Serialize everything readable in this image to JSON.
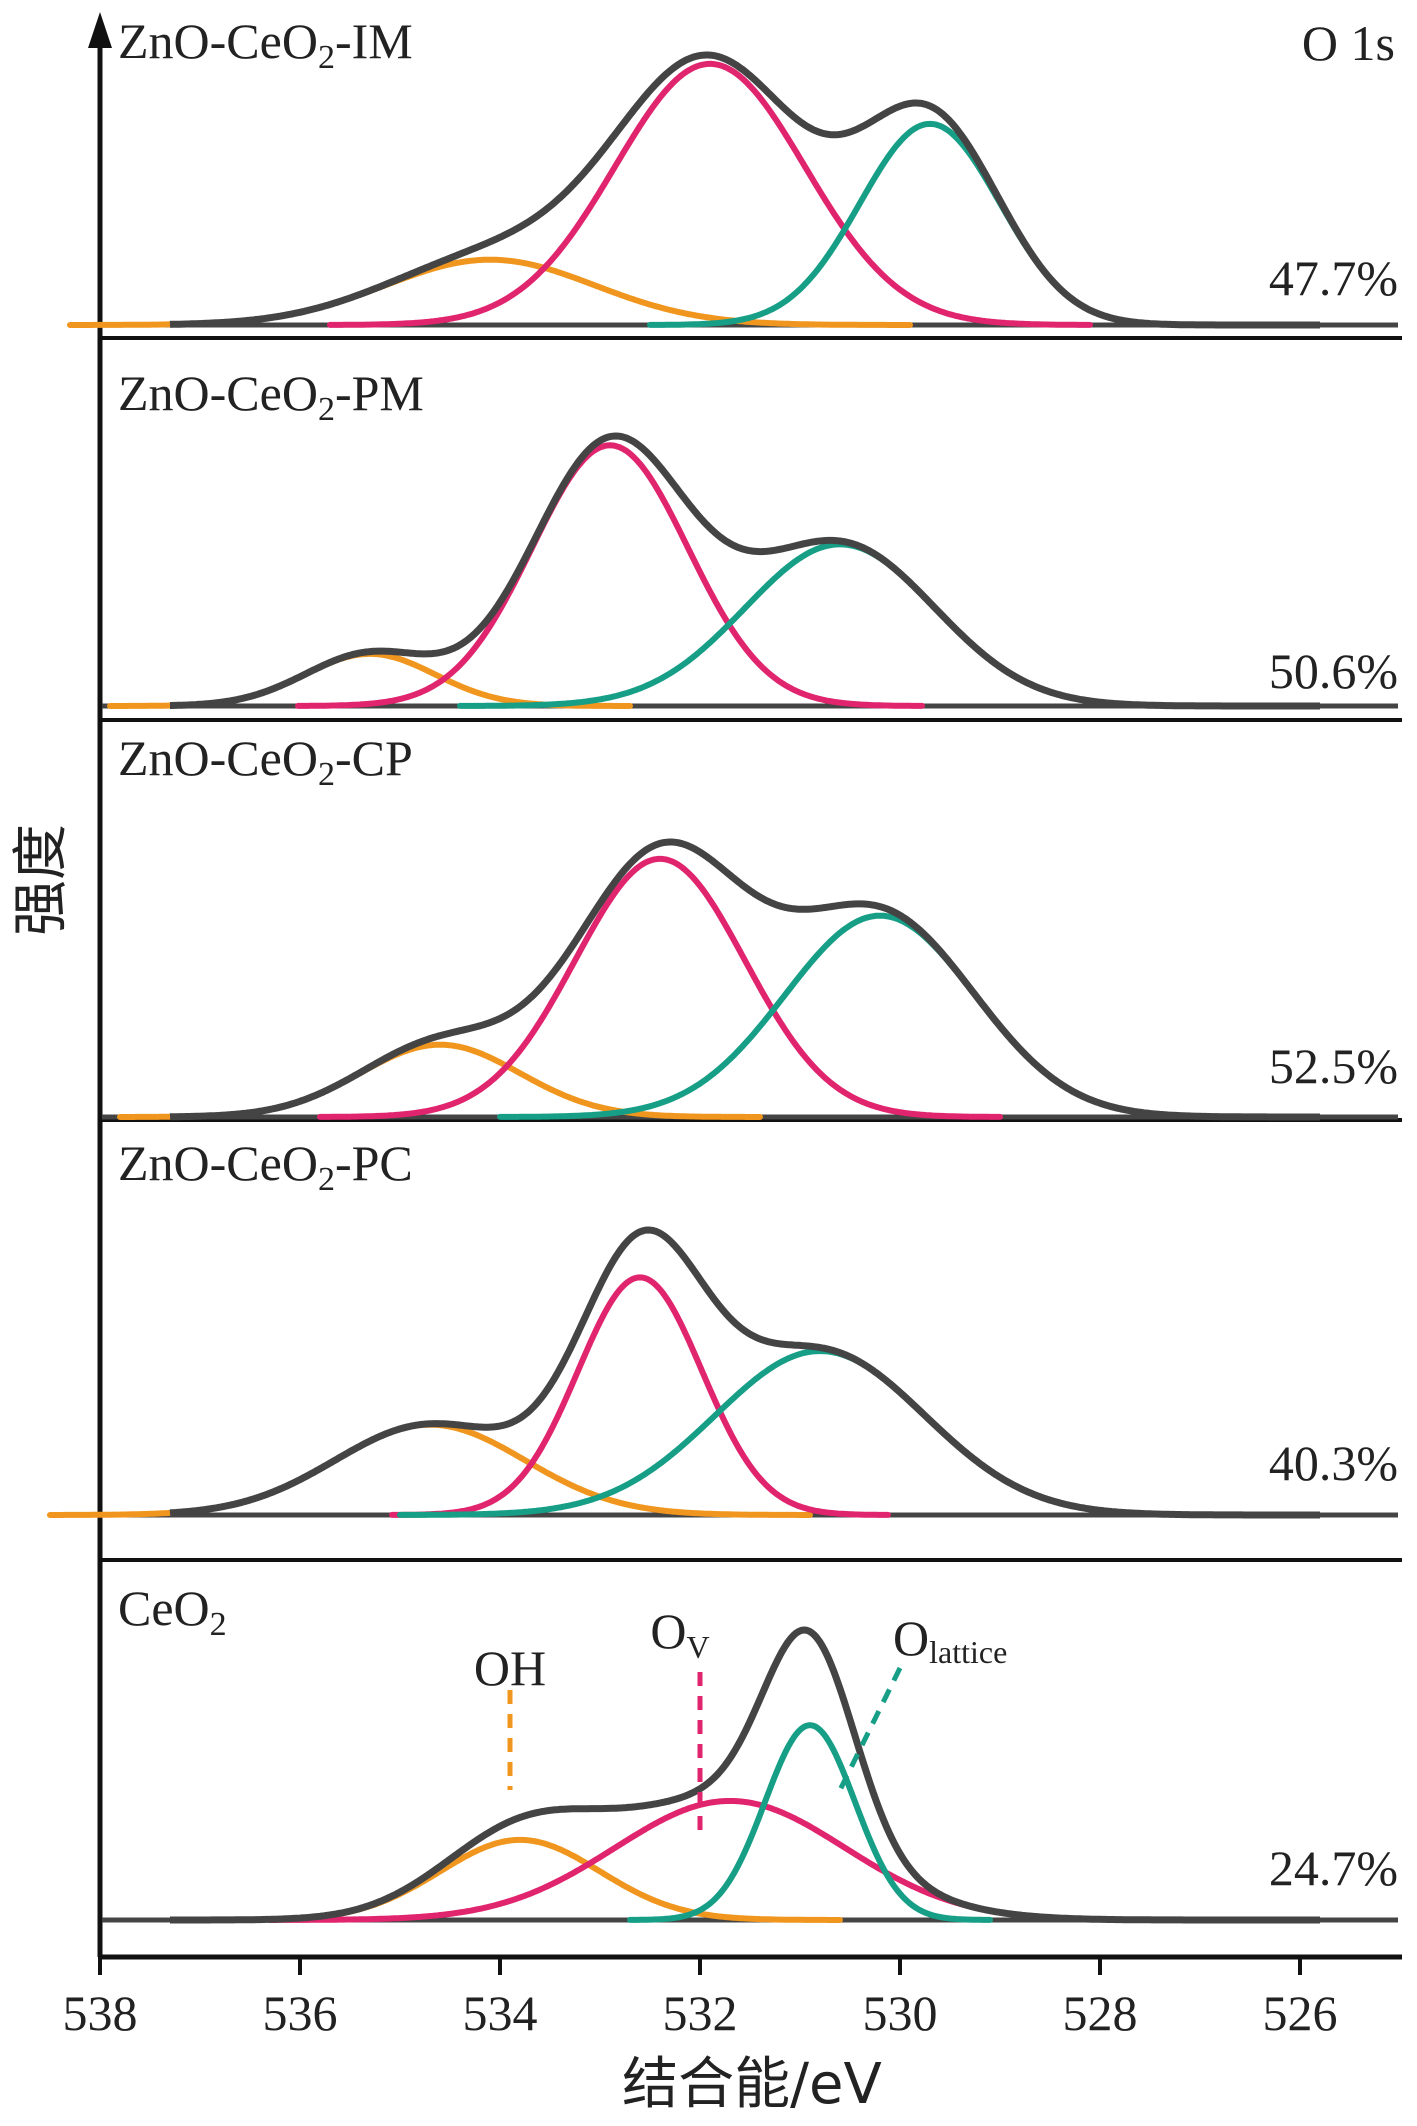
{
  "chart_data": {
    "type": "line",
    "title": "O 1s",
    "xlabel": "结合能/eV",
    "ylabel": "强度",
    "xlim": [
      538,
      525
    ],
    "x_ticks": [
      538,
      536,
      534,
      532,
      530,
      528,
      526
    ],
    "x_reversed": true,
    "y_ticks_shown": false,
    "colors": {
      "envelope": "#444444",
      "OH": "#f0961e",
      "O_V": "#e0256e",
      "O_lattice": "#169e86",
      "axis": "#111111"
    },
    "component_labels": {
      "OH": "OH",
      "O_V_main": "O",
      "O_V_sub": "V",
      "O_lattice_main": "O",
      "O_lattice_sub": "lattice"
    },
    "panels": [
      {
        "name_main": "ZnO-CeO",
        "name_sub": "2",
        "name_suffix": "-IM",
        "percent": "47.7%",
        "components": [
          {
            "id": "OH",
            "center": 534.1,
            "sigma": 1.05,
            "height": 0.25
          },
          {
            "id": "O_V",
            "center": 531.9,
            "sigma": 0.95,
            "height": 1.0
          },
          {
            "id": "O_lattice",
            "center": 529.7,
            "sigma": 0.7,
            "height": 0.77
          }
        ]
      },
      {
        "name_main": "ZnO-CeO",
        "name_sub": "2",
        "name_suffix": "-PM",
        "percent": "50.6%",
        "components": [
          {
            "id": "OH",
            "center": 535.3,
            "sigma": 0.65,
            "height": 0.2
          },
          {
            "id": "O_V",
            "center": 532.9,
            "sigma": 0.78,
            "height": 1.0
          },
          {
            "id": "O_lattice",
            "center": 530.6,
            "sigma": 0.95,
            "height": 0.62
          }
        ]
      },
      {
        "name_main": "ZnO-CeO",
        "name_sub": "2",
        "name_suffix": "-CP",
        "percent": "52.5%",
        "components": [
          {
            "id": "OH",
            "center": 534.6,
            "sigma": 0.8,
            "height": 0.28
          },
          {
            "id": "O_V",
            "center": 532.4,
            "sigma": 0.85,
            "height": 1.0
          },
          {
            "id": "O_lattice",
            "center": 530.2,
            "sigma": 0.95,
            "height": 0.78
          }
        ]
      },
      {
        "name_main": "ZnO-CeO",
        "name_sub": "2",
        "name_suffix": "-PC",
        "percent": "40.3%",
        "components": [
          {
            "id": "OH",
            "center": 534.7,
            "sigma": 0.95,
            "height": 0.38
          },
          {
            "id": "O_V",
            "center": 532.6,
            "sigma": 0.62,
            "height": 1.0
          },
          {
            "id": "O_lattice",
            "center": 530.8,
            "sigma": 1.05,
            "height": 0.69
          }
        ]
      },
      {
        "name_main": "CeO",
        "name_sub": "2",
        "name_suffix": "",
        "percent": "24.7%",
        "components": [
          {
            "id": "OH",
            "center": 533.8,
            "sigma": 0.8,
            "height": 0.37
          },
          {
            "id": "O_V",
            "center": 531.7,
            "sigma": 1.15,
            "height": 0.55
          },
          {
            "id": "O_lattice",
            "center": 530.9,
            "sigma": 0.45,
            "height": 0.9
          }
        ],
        "markers": [
          {
            "id": "OH",
            "x": 533.9
          },
          {
            "id": "O_V",
            "x": 532.0
          },
          {
            "id": "O_lattice",
            "x": 530.6
          }
        ]
      }
    ]
  }
}
